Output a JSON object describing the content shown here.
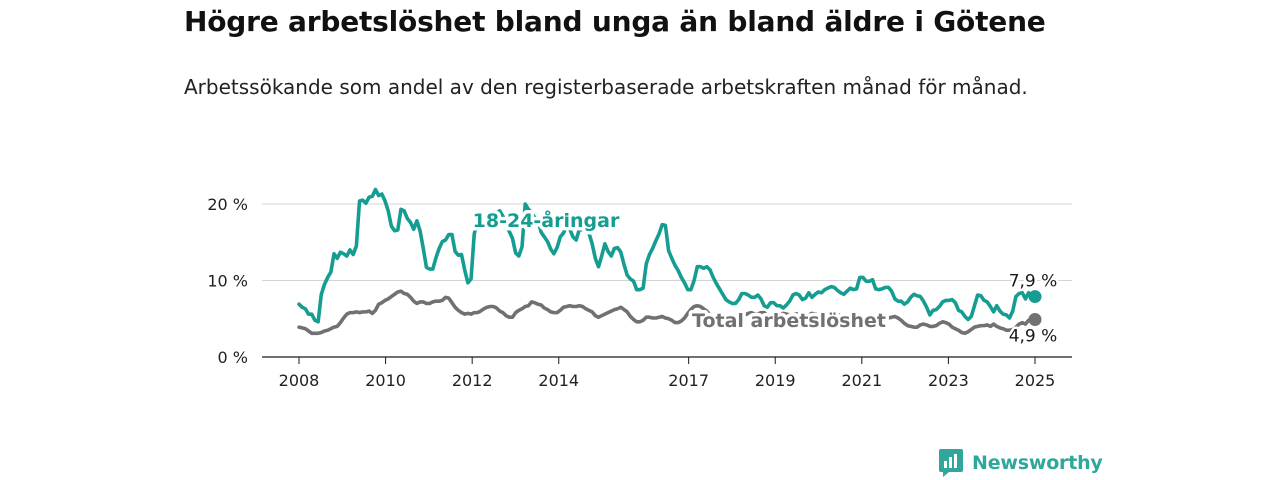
{
  "title": "Högre arbetslöshet bland unga än bland äldre i Götene",
  "subtitle": "Arbetssökande som andel av den registerbaserade arbetskraften månad för månad.",
  "brand": {
    "name": "Newsworthy",
    "color": "#2fa79b",
    "icon": "bar-chart-icon"
  },
  "chart_data": {
    "type": "line",
    "x_start": "2008-01",
    "x_end": "2025-01",
    "x_ticks": [
      "2008",
      "2010",
      "2012",
      "2014",
      "2017",
      "2019",
      "2021",
      "2023",
      "2025"
    ],
    "y_ticks": [
      "0 %",
      "10 %",
      "20 %"
    ],
    "ylim": [
      0,
      20
    ],
    "grid": true,
    "series": [
      {
        "name": "18-24-åringar",
        "color": "#159d92",
        "end_label": "7,9 %",
        "values": [
          6.9,
          6.5,
          6.3,
          5.6,
          5.6,
          4.8,
          4.6,
          8.2,
          9.5,
          10.4,
          11.1,
          13.5,
          12.9,
          13.7,
          13.5,
          13.2,
          14,
          13.4,
          14.5,
          20.4,
          20.5,
          20.1,
          20.9,
          21,
          21.9,
          21.1,
          21.3,
          20.4,
          19.1,
          17.1,
          16.5,
          16.6,
          19.3,
          19.1,
          18.1,
          17.6,
          16.7,
          17.8,
          16.5,
          14.2,
          11.7,
          11.5,
          11.5,
          13,
          14.2,
          15.1,
          15.3,
          16,
          16,
          13.8,
          13.3,
          13.4,
          11.4,
          9.7,
          10.2,
          16.1,
          17.6,
          17.8,
          18,
          18.2,
          18.3,
          18.6,
          18.9,
          19.1,
          18.4,
          17.3,
          16.4,
          15.5,
          13.6,
          13.2,
          14.4,
          20,
          19.3,
          18.9,
          18.2,
          17.9,
          16.3,
          15.7,
          15.1,
          14.1,
          13.5,
          14.3,
          15.7,
          16.2,
          17.1,
          16.7,
          15.7,
          15.3,
          16.7,
          16.6,
          16.5,
          16.2,
          14.8,
          12.9,
          11.8,
          13.2,
          14.8,
          13.8,
          13.2,
          14.2,
          14.3,
          13.7,
          12.1,
          10.7,
          10.2,
          9.9,
          8.8,
          8.8,
          9,
          12.2,
          13.4,
          14.2,
          15.2,
          16.1,
          17.3,
          17.2,
          13.9,
          12.9,
          12,
          11.3,
          10.4,
          9.7,
          8.8,
          8.8,
          10,
          11.8,
          11.8,
          11.6,
          11.8,
          11.4,
          10.4,
          9.6,
          8.9,
          8.2,
          7.5,
          7.2,
          7,
          7,
          7.5,
          8.3,
          8.3,
          8.1,
          7.8,
          7.8,
          8.1,
          7.6,
          6.7,
          6.5,
          7.1,
          7.1,
          6.7,
          6.7,
          6.4,
          6.8,
          7.3,
          8.1,
          8.3,
          8.1,
          7.5,
          7.7,
          8.4,
          7.8,
          8.2,
          8.5,
          8.4,
          8.8,
          9,
          9.2,
          9.1,
          8.7,
          8.4,
          8.2,
          8.6,
          9,
          8.8,
          8.9,
          10.4,
          10.4,
          9.9,
          9.9,
          10.1,
          8.9,
          8.8,
          8.9,
          9.1,
          9.1,
          8.6,
          7.6,
          7.3,
          7.3,
          6.9,
          7.2,
          7.8,
          8.2,
          8,
          7.9,
          7.3,
          6.5,
          5.5,
          6.1,
          6.2,
          6.6,
          7.2,
          7.4,
          7.4,
          7.5,
          7.1,
          6.1,
          5.9,
          5.3,
          4.9,
          5.3,
          6.7,
          8.1,
          8,
          7.4,
          7.2,
          6.6,
          5.9,
          6.7,
          6,
          5.6,
          5.5,
          5.1,
          6,
          7.9,
          8.3,
          8.4,
          7.6,
          8.4,
          7.9,
          7.9
        ]
      },
      {
        "name": "Total arbetslöshet",
        "color": "#717171",
        "end_label": "4,9 %",
        "values": [
          3.9,
          3.8,
          3.7,
          3.4,
          3.1,
          3.1,
          3.1,
          3.2,
          3.4,
          3.5,
          3.7,
          3.9,
          4,
          4.5,
          5.1,
          5.6,
          5.8,
          5.8,
          5.9,
          5.8,
          5.9,
          5.9,
          6,
          5.7,
          6.1,
          6.9,
          7.1,
          7.4,
          7.6,
          7.9,
          8.2,
          8.5,
          8.6,
          8.3,
          8.2,
          7.8,
          7.3,
          7,
          7.2,
          7.2,
          7,
          7,
          7.2,
          7.3,
          7.3,
          7.4,
          7.8,
          7.7,
          7.1,
          6.5,
          6.1,
          5.8,
          5.6,
          5.7,
          5.6,
          5.8,
          5.8,
          6,
          6.3,
          6.5,
          6.6,
          6.6,
          6.4,
          6,
          5.8,
          5.4,
          5.2,
          5.2,
          5.8,
          6.1,
          6.3,
          6.6,
          6.7,
          7.2,
          7.1,
          6.9,
          6.8,
          6.4,
          6.2,
          5.9,
          5.8,
          5.8,
          6.1,
          6.5,
          6.6,
          6.7,
          6.6,
          6.6,
          6.7,
          6.6,
          6.3,
          6.1,
          5.9,
          5.4,
          5.2,
          5.4,
          5.6,
          5.8,
          6,
          6.2,
          6.3,
          6.5,
          6.2,
          5.9,
          5.3,
          4.9,
          4.6,
          4.6,
          4.8,
          5.2,
          5.2,
          5.1,
          5.1,
          5.2,
          5.3,
          5.1,
          5,
          4.8,
          4.5,
          4.5,
          4.7,
          5.1,
          5.7,
          6.2,
          6.6,
          6.7,
          6.6,
          6.3,
          6,
          5.5,
          5.3,
          5.1,
          5.1,
          5.1,
          5.3,
          5.2,
          5.1,
          5,
          5,
          5.2,
          5.5,
          5.7,
          5.8,
          5.6,
          5.6,
          5.8,
          5.8,
          5.4,
          5.2,
          5.2,
          5.4,
          5.6,
          5.7,
          5.6,
          5.5,
          5.5,
          5.6,
          5.7,
          5.7,
          5.4,
          5.5,
          5.7,
          5.6,
          5.5,
          5.5,
          5.4,
          5.3,
          5.5,
          5.7,
          5.6,
          5.4,
          5.4,
          5.4,
          5.3,
          5.2,
          5.1,
          5,
          5.2,
          5.3,
          5.2,
          5,
          4.9,
          4.8,
          4.9,
          5,
          5.1,
          5.2,
          5.3,
          5.1,
          4.8,
          4.4,
          4.1,
          4,
          3.9,
          3.9,
          4.2,
          4.3,
          4.2,
          4,
          4,
          4.1,
          4.4,
          4.6,
          4.5,
          4.3,
          3.9,
          3.7,
          3.5,
          3.2,
          3.1,
          3.3,
          3.6,
          3.9,
          4,
          4.1,
          4.1,
          4.2,
          4,
          4.3,
          4,
          3.8,
          3.7,
          3.5,
          3.5,
          3.6,
          3.9,
          4.3,
          4.5,
          4.3,
          4.8,
          4.9,
          4.9
        ]
      }
    ]
  }
}
